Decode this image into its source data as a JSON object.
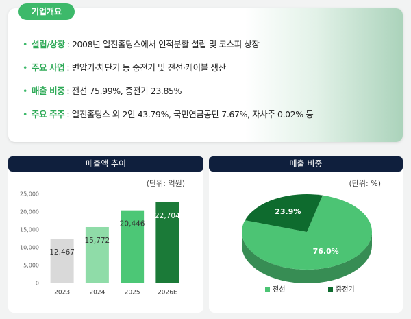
{
  "company_info": {
    "tag": "기업개요",
    "items": [
      {
        "label": "설립/상장",
        "text": ": 2008년 일진홀딩스에서 인적분할 설립 및 코스피 상장"
      },
      {
        "label": "주요 사업",
        "text": ": 변압기·차단기 등 중전기 및 전선·케이블 생산"
      },
      {
        "label": "매출 비중",
        "text": ": 전선 75.99%, 중전기 23.85%"
      },
      {
        "label": "주요 주주",
        "text": ": 일진홀딩스 외 2인 43.79%, 국민연금공단 7.67%, 자사주 0.02% 등"
      }
    ]
  },
  "chart_data": [
    {
      "type": "bar",
      "title": "매출액 추이",
      "unit": "(단위: 억원)",
      "categories": [
        "2023",
        "2024",
        "2025",
        "2026E"
      ],
      "values": [
        12467,
        15772,
        20446,
        22704
      ],
      "value_labels": [
        "12,467",
        "15,772",
        "20,446",
        "22,704"
      ],
      "colors": [
        "#d9d9d9",
        "#8fdca8",
        "#4cc776",
        "#1b7a38"
      ],
      "ylim": [
        0,
        25000
      ],
      "yticks": [
        0,
        {
          "value": 5000,
          "label": "5,000"
        },
        {
          "value": 10000,
          "label": "10,000"
        },
        {
          "value": 15000,
          "label": "15,000"
        },
        {
          "value": 20000,
          "label": "20,000"
        },
        {
          "value": 25000,
          "label": "25,000"
        }
      ]
    },
    {
      "type": "pie",
      "title": "매출 비중",
      "unit": "(단위: %)",
      "categories": [
        "전선",
        "중전기"
      ],
      "values": [
        76.0,
        23.9
      ],
      "value_labels": [
        "76.0%",
        "23.9%"
      ],
      "colors": [
        "#4cc474",
        "#0e6b2e"
      ]
    }
  ]
}
